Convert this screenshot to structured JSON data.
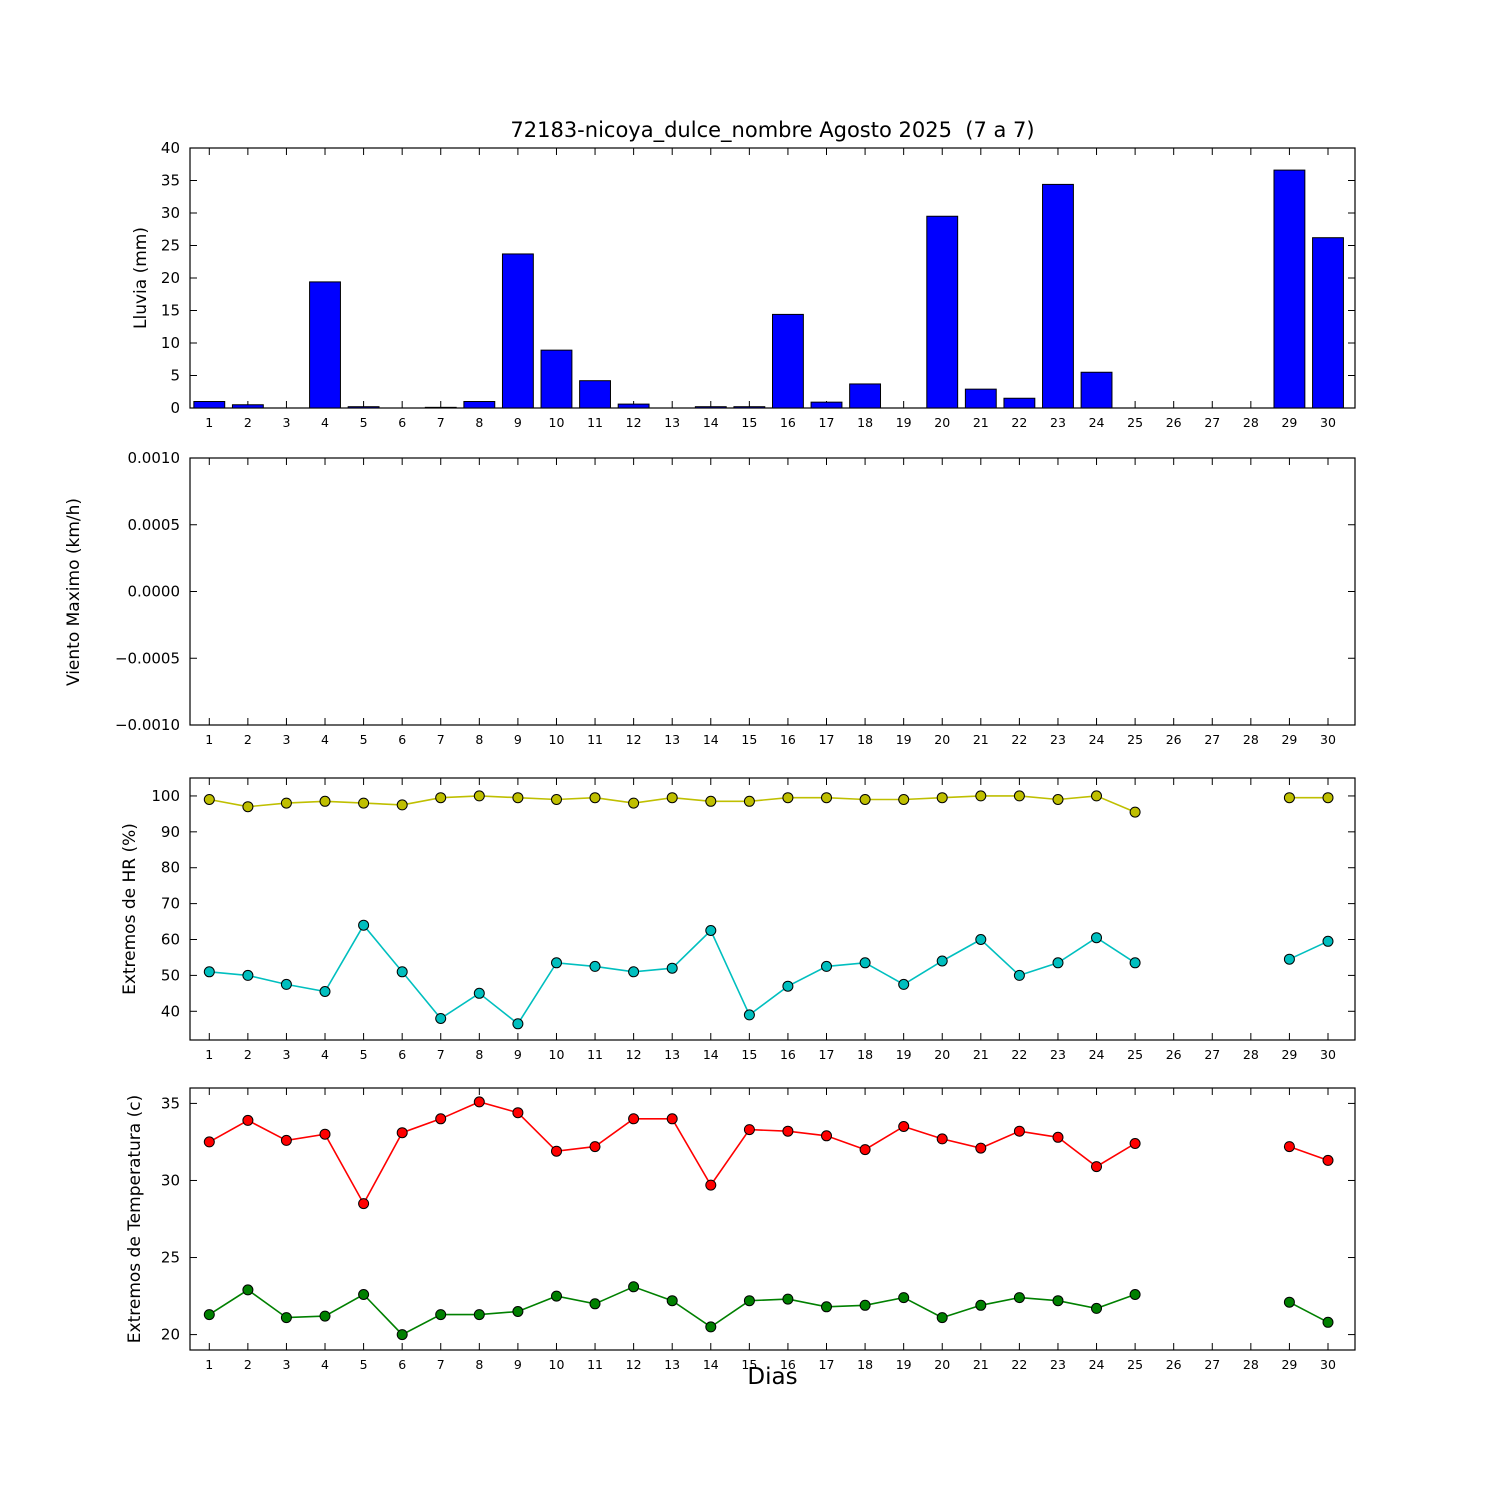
{
  "figure": {
    "title": "72183-nicoya_dulce_nombre Agosto 2025  (7 a 7)",
    "xlabel": "Dias",
    "background": "#ffffff",
    "days": [
      1,
      2,
      3,
      4,
      5,
      6,
      7,
      8,
      9,
      10,
      11,
      12,
      13,
      14,
      15,
      16,
      17,
      18,
      19,
      20,
      21,
      22,
      23,
      24,
      25,
      26,
      27,
      28,
      29,
      30
    ]
  },
  "chart_data": [
    {
      "type": "bar",
      "ylabel": "Lluvia (mm)",
      "ylim": [
        0,
        40
      ],
      "yticks": [
        {
          "value": 0,
          "label": "0"
        },
        {
          "value": 5,
          "label": "5"
        },
        {
          "value": 10,
          "label": "10"
        },
        {
          "value": 15,
          "label": "15"
        },
        {
          "value": 20,
          "label": "20"
        },
        {
          "value": 25,
          "label": "25"
        },
        {
          "value": 30,
          "label": "30"
        },
        {
          "value": 35,
          "label": "35"
        },
        {
          "value": 40,
          "label": "40"
        }
      ],
      "bar_color": "#0000ff",
      "bar_width": 0.8,
      "values": [
        1.0,
        0.5,
        0,
        19.4,
        0.2,
        0,
        0.1,
        1.0,
        23.7,
        8.9,
        4.2,
        0.6,
        0,
        0.2,
        0.2,
        14.4,
        0.9,
        3.7,
        0,
        29.5,
        2.9,
        1.5,
        34.4,
        5.5,
        0,
        0,
        0,
        0,
        36.6,
        26.2
      ]
    },
    {
      "type": "line",
      "ylabel": "Viento Maximo (km/h)",
      "ylim": [
        -0.001,
        0.001
      ],
      "yticks": [
        {
          "value": 0.001,
          "label": "0.0010"
        },
        {
          "value": 0.0005,
          "label": "0.0005"
        },
        {
          "value": 0.0,
          "label": "0.0000"
        },
        {
          "value": -0.0005,
          "label": "−0.0005"
        },
        {
          "value": -0.001,
          "label": "−0.0010"
        }
      ],
      "series": []
    },
    {
      "type": "line",
      "ylabel": "Extremos de HR (%)",
      "ylim": [
        32,
        105
      ],
      "yticks": [
        {
          "value": 40,
          "label": "40"
        },
        {
          "value": 50,
          "label": "50"
        },
        {
          "value": 60,
          "label": "60"
        },
        {
          "value": 70,
          "label": "70"
        },
        {
          "value": 80,
          "label": "80"
        },
        {
          "value": 90,
          "label": "90"
        },
        {
          "value": 100,
          "label": "100"
        }
      ],
      "series": [
        {
          "id": "hr-max",
          "color": "#bfbf00",
          "values": [
            99,
            97,
            98,
            98.5,
            98,
            97.5,
            99.5,
            100,
            99.5,
            99,
            99.5,
            98,
            99.5,
            98.5,
            98.5,
            99.5,
            99.5,
            99,
            99,
            99.5,
            100,
            100,
            99,
            100,
            95.5,
            null,
            null,
            null,
            99.5,
            99.5
          ]
        },
        {
          "id": "hr-min",
          "color": "#00bfbf",
          "values": [
            51,
            50,
            47.5,
            45.5,
            64,
            51,
            38,
            45,
            36.5,
            53.5,
            52.5,
            51,
            52,
            62.5,
            39,
            47,
            52.5,
            53.5,
            47.5,
            54,
            60,
            50,
            53.5,
            60.5,
            53.5,
            null,
            null,
            null,
            54.5,
            59.5
          ]
        }
      ]
    },
    {
      "type": "line",
      "ylabel": "Extremos de Temperatura (c)",
      "ylim": [
        19,
        36
      ],
      "yticks": [
        {
          "value": 20,
          "label": "20"
        },
        {
          "value": 25,
          "label": "25"
        },
        {
          "value": 30,
          "label": "30"
        },
        {
          "value": 35,
          "label": "35"
        }
      ],
      "series": [
        {
          "id": "temp-max",
          "color": "#ff0000",
          "values": [
            32.5,
            33.9,
            32.6,
            33.0,
            28.5,
            33.1,
            34.0,
            35.1,
            34.4,
            31.9,
            32.2,
            34.0,
            34.0,
            29.7,
            33.3,
            33.2,
            32.9,
            32.0,
            33.5,
            32.7,
            32.1,
            33.2,
            32.8,
            30.9,
            32.4,
            null,
            null,
            null,
            32.2,
            31.3
          ]
        },
        {
          "id": "temp-min",
          "color": "#008000",
          "values": [
            21.3,
            22.9,
            21.1,
            21.2,
            22.6,
            20.0,
            21.3,
            21.3,
            21.5,
            22.5,
            22.0,
            23.1,
            22.2,
            20.5,
            22.2,
            22.3,
            21.8,
            21.9,
            22.4,
            21.1,
            21.9,
            22.4,
            22.2,
            21.7,
            22.6,
            null,
            null,
            null,
            22.1,
            20.8
          ]
        }
      ]
    }
  ]
}
